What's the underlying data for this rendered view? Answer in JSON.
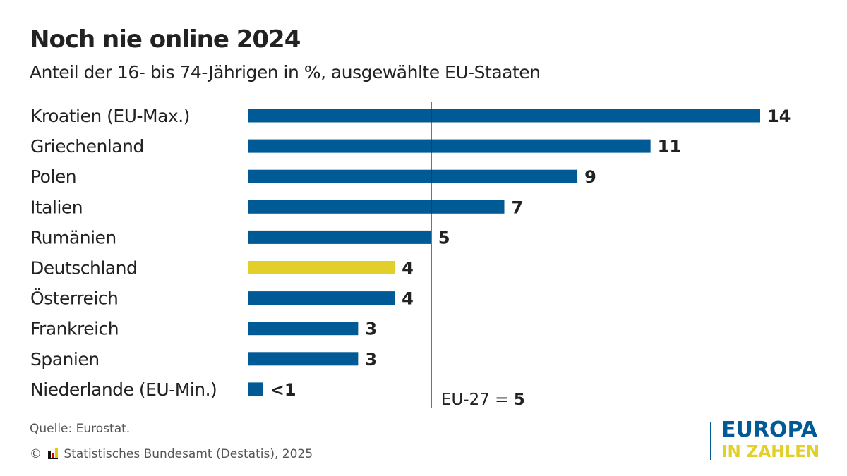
{
  "colors": {
    "bar": "#005a96",
    "highlight": "#e3cf2a",
    "text": "#222222"
  },
  "chart_data": {
    "type": "bar",
    "orientation": "horizontal",
    "title": "Noch nie online 2024",
    "subtitle": "Anteil der 16- bis 74-Jährigen in %, ausgewählte EU-Staaten",
    "categories": [
      "Kroatien (EU-Max.)",
      "Griechenland",
      "Polen",
      "Italien",
      "Rumänien",
      "Deutschland",
      "Österreich",
      "Frankreich",
      "Spanien",
      "Niederlande (EU-Min.)"
    ],
    "values": [
      14,
      11,
      9,
      7,
      5,
      4,
      4,
      3,
      3,
      0.4
    ],
    "data_labels": [
      "14",
      "11",
      "9",
      "7",
      "5",
      "4",
      "4",
      "3",
      "3",
      "<1"
    ],
    "highlight": "Deutschland",
    "reference_line": {
      "value": 5,
      "label_prefix": "EU-27 = ",
      "label_value": "5"
    },
    "xlim": [
      0,
      14
    ],
    "grid": false
  },
  "footer": {
    "source": "Quelle: Eurostat.",
    "copyright": "© ",
    "publisher": "Statistisches Bundesamt (Destatis), 2025"
  },
  "logo": {
    "line1": "EUROPA",
    "line2": "IN ZAHLEN"
  }
}
